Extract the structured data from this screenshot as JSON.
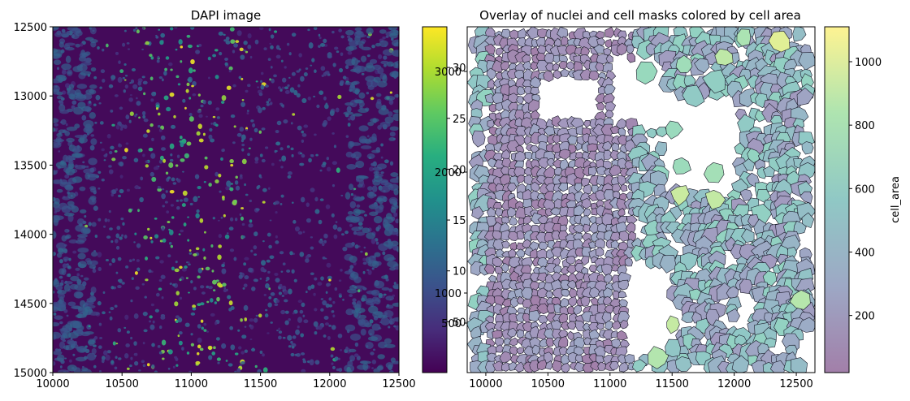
{
  "chart_data": [
    {
      "type": "heatmap",
      "title": "DAPI image",
      "colormap": "viridis",
      "xlim": [
        10000,
        12500
      ],
      "ylim": [
        12500,
        15000
      ],
      "y_inverted": true,
      "xticks": [
        10000,
        10500,
        11000,
        11500,
        12000,
        12500
      ],
      "yticks": [
        12500,
        13000,
        13500,
        14000,
        14500,
        15000
      ],
      "colorbar": {
        "range": [
          0,
          3400
        ],
        "ticks": [
          500,
          1000,
          1500,
          2000,
          2500,
          3000
        ],
        "label": ""
      }
    },
    {
      "type": "scatter",
      "title": "Overlay of nuclei and cell masks colored by cell area",
      "description_of_marks": "polygon cell masks with nuclei outlines",
      "colormap": "viridis",
      "alpha": 0.5,
      "xlim": [
        9850,
        12650
      ],
      "xticks": [
        10000,
        10500,
        11000,
        11500,
        12000,
        12500
      ],
      "yticks_visible": [
        "3000",
        "2000",
        "1000",
        "500"
      ],
      "color_by": "cell_area",
      "colorbar": {
        "range": [
          20,
          1110
        ],
        "ticks": [
          200,
          400,
          600,
          800,
          1000
        ],
        "label": "cell_area"
      }
    }
  ]
}
